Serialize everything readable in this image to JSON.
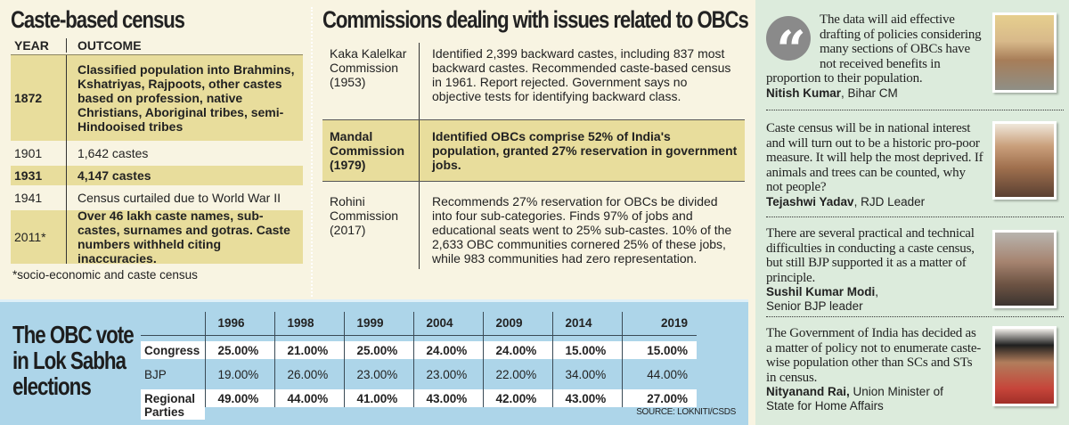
{
  "census": {
    "title": "Caste-based census",
    "headers": {
      "year": "YEAR",
      "outcome": "OUTCOME"
    },
    "rows": [
      {
        "year": "1872",
        "outcome": "Classified population into Brahmins, Kshatriyas, Rajpoots, other castes based on profession, native Christians, Aboriginal tribes, semi-Hindooised tribes"
      },
      {
        "year": "1901",
        "outcome": "1,642 castes"
      },
      {
        "year": "1931",
        "outcome": "4,147 castes"
      },
      {
        "year": "1941",
        "outcome": "Census curtailed due to World War II"
      },
      {
        "year": "2011*",
        "outcome": "Over 46 lakh caste names, sub-castes, surnames and gotras. Caste numbers withheld citing inaccuracies."
      }
    ],
    "footnote": "*socio-economic and caste census"
  },
  "commissions": {
    "title": "Commissions dealing with issues related to OBCs",
    "rows": [
      {
        "name": "Kaka Kalelkar Commission (1953)",
        "desc": "Identified 2,399 backward castes, including 837 most backward castes. Recommended caste-based census in 1961. Report rejected. Government says no objective tests for identifying backward class."
      },
      {
        "name": "Mandal Commission (1979)",
        "desc": "Identified OBCs comprise 52% of India's population, granted 27% reservation in government jobs."
      },
      {
        "name": "Rohini Commission (2017)",
        "desc": "Recommends 27% reservation for OBCs be divided into four sub-categories. Finds 97% of jobs and educational seats went to 25% sub-castes. 10% of the 2,633 OBC communities cornered 25% of these jobs, while 983 communities had zero representation."
      }
    ]
  },
  "obc_vote": {
    "title_lines": [
      "The OBC vote",
      "in Lok Sabha",
      "elections"
    ],
    "years": [
      "1996",
      "1998",
      "1999",
      "2004",
      "2009",
      "2014",
      "2019"
    ],
    "rows": [
      {
        "party": "Congress",
        "values": [
          "25.00%",
          "21.00%",
          "25.00%",
          "24.00%",
          "24.00%",
          "15.00%",
          "15.00%"
        ]
      },
      {
        "party": "BJP",
        "values": [
          "19.00%",
          "26.00%",
          "23.00%",
          "23.00%",
          "22.00%",
          "34.00%",
          "44.00%"
        ]
      },
      {
        "party": "Regional",
        "party_line2": "Parties",
        "values": [
          "49.00%",
          "44.00%",
          "41.00%",
          "43.00%",
          "42.00%",
          "43.00%",
          "27.00%"
        ]
      }
    ],
    "source": "SOURCE: LOKNITI/CSDS"
  },
  "quotes": [
    {
      "text": "The data will aid effective drafting of policies considering many sections of OBCs have not received benefits in proportion to their population.",
      "name": "Nitish Kumar",
      "role": ", Bihar CM"
    },
    {
      "text": "Caste census will be in national interest and will turn out to be a historic pro-poor measure. It will help the most deprived. If animals and trees can be counted, why not people?",
      "name": "Tejashwi Yadav",
      "role": ", RJD Leader"
    },
    {
      "text": "There are several practical and technical difficulties in conducting a caste census, but still BJP supported it as a matter of principle.",
      "name": "Sushil Kumar Modi",
      "role": ",",
      "role_line2": "Senior BJP leader"
    },
    {
      "text": "The Government of India has decided as a matter of policy not to enumerate caste-wise population other than SCs and STs in census.",
      "name": "Nityanand Rai,",
      "role": " Union Minister of",
      "role_line2": "State for Home Affairs"
    }
  ],
  "colors": {
    "cream": "#f8f4e2",
    "highlight": "#e8dd9c",
    "blue_panel": "#add5e9",
    "green_panel": "#dcebdc",
    "quote_mark": "#8a8a8a"
  },
  "icons": {
    "quote": "quote-mark-icon"
  }
}
